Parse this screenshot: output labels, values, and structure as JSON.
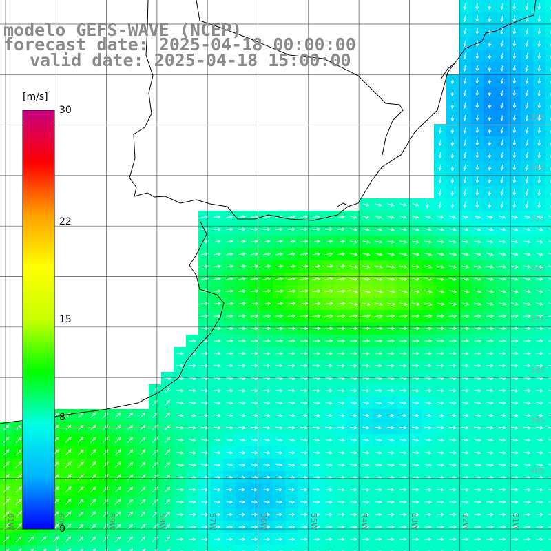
{
  "title": {
    "line1": "modelo GEFS-WAVE (NCEP)",
    "line2": "forecast date: 2025-04-18 00:00:00",
    "line3": "valid date: 2025-04-18 15:00:00"
  },
  "colorbar": {
    "unit": "[m/s]",
    "min": 0,
    "max": 30,
    "ticks": [
      "30",
      "22",
      "15",
      "8",
      "0"
    ],
    "tick_values": [
      30,
      22,
      15,
      8,
      0
    ],
    "colors": [
      "#0000ff",
      "#00b4ff",
      "#00ffe6",
      "#00ff00",
      "#c8ff00",
      "#ffff00",
      "#ffa000",
      "#ff0000",
      "#c80082"
    ]
  },
  "longitude_labels": [
    "61W",
    "60W",
    "59W",
    "58W",
    "57W",
    "56W",
    "55W",
    "54W",
    "53W",
    "52W",
    "51W"
  ],
  "latitude_labels": [
    "33S",
    "34S",
    "35S",
    "36S",
    "37S",
    "38S",
    "39S",
    "40S"
  ],
  "colors": {
    "land": "#ffffff",
    "coast": "#000000",
    "grid": "#555555",
    "title_text": "#8a8a8a",
    "arrows": "#ffffff"
  }
}
